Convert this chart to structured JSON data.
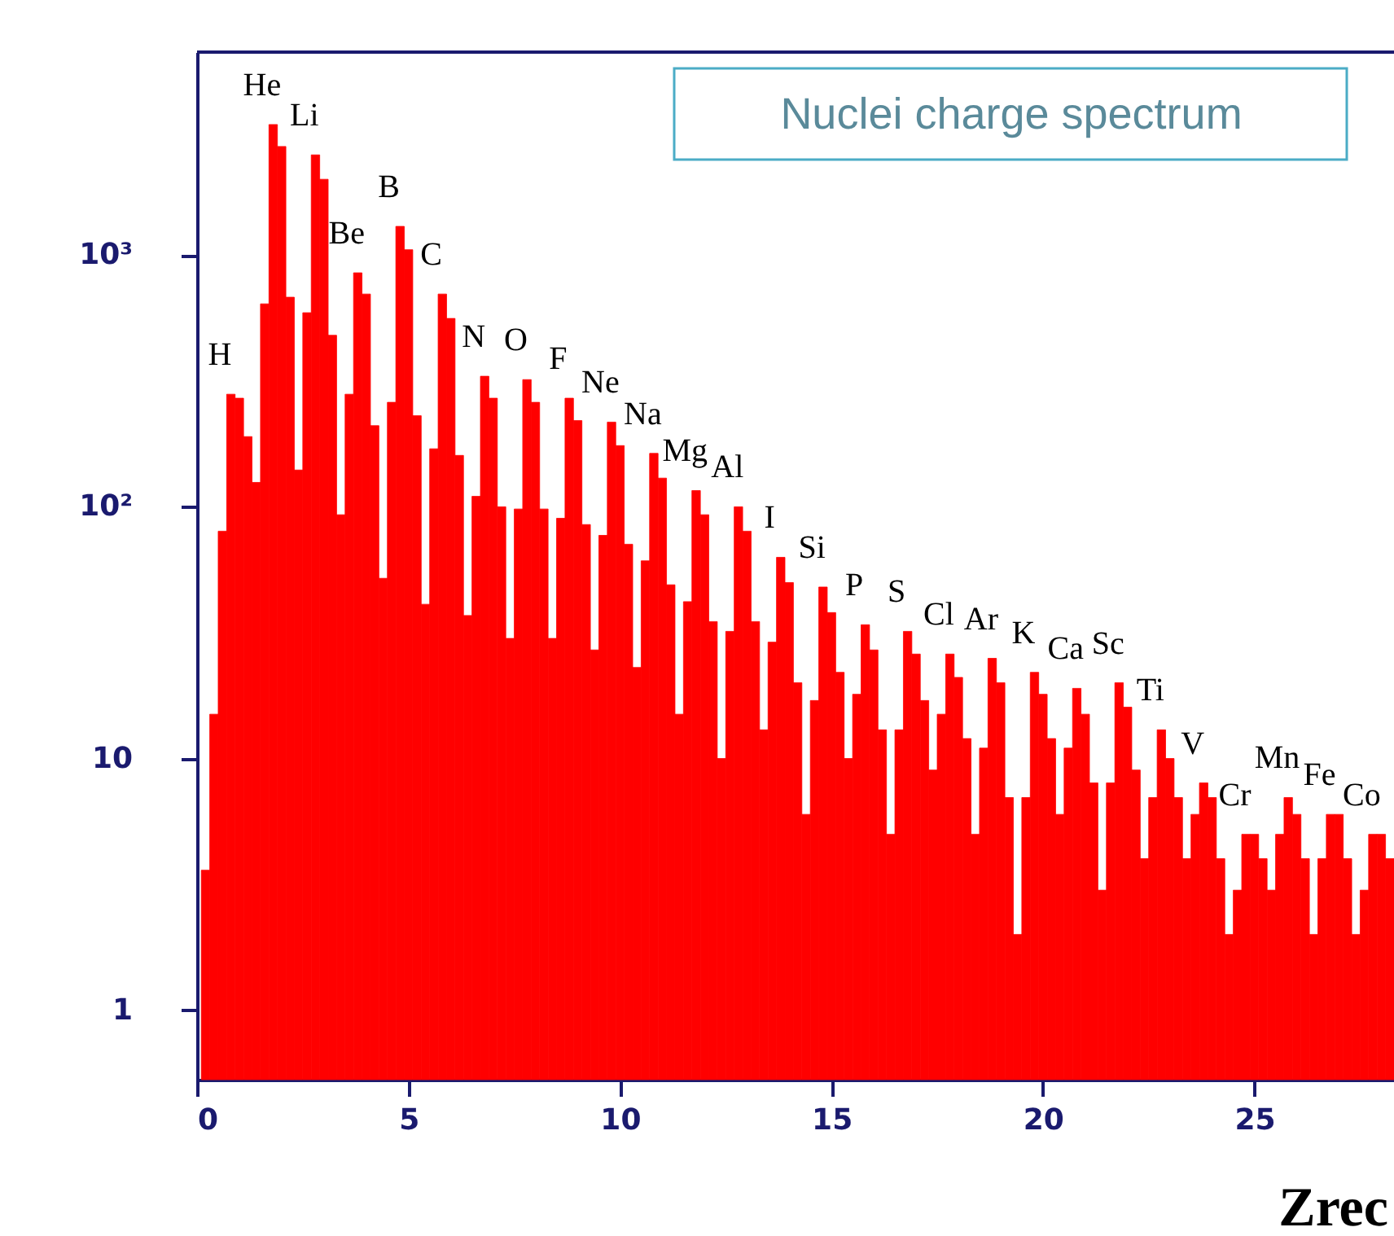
{
  "chart_data": {
    "type": "histogram",
    "title": "Nuclei charge spectrum",
    "xlabel": "Zrec",
    "color": "#ff0000",
    "bins": [
      0.1,
      0.3,
      0.5,
      0.7,
      0.9,
      1.1,
      1.3,
      1.5,
      1.7,
      1.9,
      2.1,
      2.3,
      2.5,
      2.7,
      2.9,
      3.1,
      3.3,
      3.5,
      3.7,
      3.9,
      4.1,
      4.3,
      4.5,
      4.7,
      4.9,
      5.1,
      5.3,
      5.5,
      5.7,
      5.9,
      6.1,
      6.3,
      6.5,
      6.7,
      6.9,
      7.1,
      7.3,
      7.5,
      7.7,
      7.9,
      8.1,
      8.3,
      8.5,
      8.7,
      8.9,
      9.1,
      9.3,
      9.5,
      9.7,
      9.9,
      10.1,
      10.3,
      10.5,
      10.7,
      10.9,
      11.1,
      11.3,
      11.5,
      11.7,
      11.9,
      12.1,
      12.3,
      12.5,
      12.7,
      12.9,
      13.1,
      13.3,
      13.5,
      13.7,
      13.9,
      14.1,
      14.3,
      14.5,
      14.7,
      14.9,
      15.1,
      15.3,
      15.5,
      15.7,
      15.9,
      16.1,
      16.3,
      16.5,
      16.7,
      16.9,
      17.1,
      17.3,
      17.5,
      17.7,
      17.9,
      18.1,
      18.3,
      18.5,
      18.7,
      18.9,
      19.1,
      19.3,
      19.5,
      19.7,
      19.9,
      20.1,
      20.3,
      20.5,
      20.7,
      20.9,
      21.1,
      21.3,
      21.5,
      21.7,
      21.9,
      22.1,
      22.3,
      22.5,
      22.7,
      22.9,
      23.1,
      23.3,
      23.5,
      23.7,
      23.9,
      24.1,
      24.3,
      24.5,
      24.7,
      24.9,
      25.1,
      25.3,
      25.5,
      25.7,
      25.9,
      26.1,
      26.3,
      26.5,
      26.7,
      26.9,
      27.1,
      27.3,
      27.5,
      27.7,
      27.9,
      28.1,
      28.3
    ],
    "values": [
      3.6,
      15,
      80,
      280,
      270,
      190,
      125,
      640,
      3300,
      2700,
      680,
      140,
      590,
      2500,
      2000,
      480,
      93,
      280,
      850,
      700,
      210,
      52,
      260,
      1300,
      1050,
      230,
      41,
      170,
      700,
      560,
      160,
      37,
      110,
      330,
      270,
      100,
      30,
      98,
      320,
      260,
      98,
      30,
      90,
      270,
      220,
      85,
      27,
      77,
      217,
      175,
      71,
      23,
      61,
      163,
      130,
      49,
      15,
      42,
      116,
      93,
      35,
      10,
      32,
      100,
      80,
      35,
      13,
      29,
      63,
      50,
      20,
      6,
      17,
      48,
      38,
      22,
      10,
      18,
      34,
      27,
      13,
      5,
      13,
      32,
      26,
      17,
      9,
      15,
      26,
      21,
      12,
      5,
      11,
      25,
      20,
      7,
      2,
      7,
      22,
      18,
      12,
      6,
      11,
      19,
      15,
      8,
      3,
      8,
      20,
      16,
      9,
      4,
      7,
      13,
      10,
      7,
      4,
      6,
      8,
      7,
      4,
      2,
      3,
      5,
      5,
      4,
      3,
      5,
      7,
      6,
      4,
      2,
      4,
      6,
      6,
      4,
      2,
      3,
      5,
      5,
      4
    ],
    "log": true,
    "xlim": [
      0,
      28.3
    ],
    "ylim": [
      0.53,
      6400
    ],
    "xticks": [
      0,
      5,
      10,
      15,
      20,
      25
    ],
    "yticks": [
      1,
      10,
      {
        "value": 100,
        "label": "10²"
      },
      {
        "value": 1000,
        "label": "10³"
      }
    ],
    "grid": false,
    "annotations": [
      {
        "text": "H",
        "x": 1,
        "y": 280
      },
      {
        "text": "He",
        "x": 2,
        "y": 3300
      },
      {
        "text": "Li",
        "x": 3,
        "y": 2500
      },
      {
        "text": "Be",
        "x": 4,
        "y": 850
      },
      {
        "text": "B",
        "x": 5,
        "y": 1300
      },
      {
        "text": "C",
        "x": 6,
        "y": 700
      },
      {
        "text": "N",
        "x": 7,
        "y": 330
      },
      {
        "text": "O",
        "x": 8,
        "y": 320
      },
      {
        "text": "F",
        "x": 9,
        "y": 270
      },
      {
        "text": "Ne",
        "x": 10,
        "y": 217
      },
      {
        "text": "Na",
        "x": 11,
        "y": 163
      },
      {
        "text": "Mg",
        "x": 12,
        "y": 116
      },
      {
        "text": "Al",
        "x": 13,
        "y": 100
      },
      {
        "text": "I",
        "x": 14,
        "y": 63
      },
      {
        "text": "Si",
        "x": 15,
        "y": 48
      },
      {
        "text": "P",
        "x": 16,
        "y": 34
      },
      {
        "text": "S",
        "x": 17,
        "y": 32
      },
      {
        "text": "Cl",
        "x": 18,
        "y": 26
      },
      {
        "text": "Ar",
        "x": 19,
        "y": 25
      },
      {
        "text": "K",
        "x": 20,
        "y": 22
      },
      {
        "text": "Ca",
        "x": 21,
        "y": 19
      },
      {
        "text": "Sc",
        "x": 22,
        "y": 20
      },
      {
        "text": "Ti",
        "x": 23,
        "y": 13
      },
      {
        "text": "V",
        "x": 24,
        "y": 8
      },
      {
        "text": "Cr",
        "x": 25,
        "y": 5
      },
      {
        "text": "Mn",
        "x": 26,
        "y": 7
      },
      {
        "text": "Fe",
        "x": 27,
        "y": 6
      },
      {
        "text": "Co",
        "x": 28,
        "y": 5
      }
    ]
  }
}
